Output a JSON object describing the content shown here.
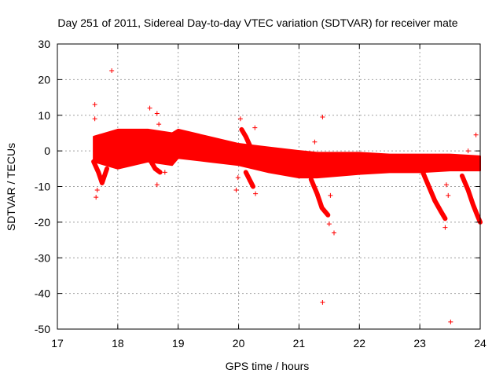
{
  "chart_data": {
    "type": "scatter",
    "title": "Day 251 of 2011, Sidereal Day-to-day VTEC variation (SDTVAR) for receiver mate",
    "xlabel": "GPS time / hours",
    "ylabel": "SDTVAR / TECUs",
    "xlim": [
      17,
      24
    ],
    "ylim": [
      -50,
      30
    ],
    "xticks": [
      "17",
      "18",
      "19",
      "20",
      "21",
      "22",
      "23",
      "24"
    ],
    "yticks": [
      "30",
      "20",
      "10",
      "0",
      "-10",
      "-20",
      "-30",
      "-40",
      "-50"
    ],
    "grid": true,
    "marker": "+",
    "series": [
      {
        "name": "SDTVAR",
        "color": "#ff0000",
        "band": {
          "x": [
            17.6,
            18.0,
            18.5,
            18.9,
            19.0,
            19.5,
            20.0,
            20.5,
            21.0,
            21.3,
            22.0,
            22.5,
            23.0,
            23.5,
            24.0
          ],
          "upper": [
            4,
            6,
            6,
            5,
            6,
            4,
            2,
            1,
            0,
            -0.5,
            -0.5,
            -1,
            -1,
            -1,
            -1.5
          ],
          "lower": [
            -3,
            -5,
            -3,
            -4,
            -2,
            -3,
            -4,
            -6,
            -7.5,
            -7.5,
            -6.5,
            -6,
            -6,
            -5.5,
            -5.5
          ]
        },
        "tracks": [
          {
            "x": [
              17.6,
              17.68,
              17.74,
              17.82
            ],
            "y": [
              -3,
              -6,
              -9,
              -5
            ]
          },
          {
            "x": [
              18.5,
              18.55,
              18.62,
              18.7
            ],
            "y": [
              -1,
              -3,
              -5,
              -6
            ]
          },
          {
            "x": [
              20.05,
              20.12,
              20.2,
              20.28
            ],
            "y": [
              6,
              4,
              1,
              -2
            ]
          },
          {
            "x": [
              20.12,
              20.18,
              20.24
            ],
            "y": [
              -6,
              -8,
              -10
            ]
          },
          {
            "x": [
              21.2,
              21.3,
              21.38,
              21.48
            ],
            "y": [
              -8,
              -12,
              -16,
              -18
            ]
          },
          {
            "x": [
              23.05,
              23.15,
              23.25,
              23.35,
              23.42
            ],
            "y": [
              -6,
              -10,
              -14,
              -17,
              -19
            ]
          },
          {
            "x": [
              23.7,
              23.8,
              23.88,
              23.95,
              24.0
            ],
            "y": [
              -7,
              -11,
              -15,
              -18,
              -20
            ]
          }
        ],
        "outliers": [
          {
            "x": 17.62,
            "y": 13
          },
          {
            "x": 17.62,
            "y": 9
          },
          {
            "x": 17.64,
            "y": -13
          },
          {
            "x": 17.66,
            "y": -11
          },
          {
            "x": 17.9,
            "y": 22.5
          },
          {
            "x": 18.53,
            "y": 12
          },
          {
            "x": 18.65,
            "y": 10.5
          },
          {
            "x": 18.65,
            "y": -9.5
          },
          {
            "x": 18.68,
            "y": 7.5
          },
          {
            "x": 18.78,
            "y": -6
          },
          {
            "x": 19.96,
            "y": -11
          },
          {
            "x": 19.99,
            "y": -7.5
          },
          {
            "x": 20.03,
            "y": 9
          },
          {
            "x": 20.19,
            "y": -8.5
          },
          {
            "x": 20.27,
            "y": 6.5
          },
          {
            "x": 20.28,
            "y": -12
          },
          {
            "x": 21.26,
            "y": 2.5
          },
          {
            "x": 21.39,
            "y": 9.5
          },
          {
            "x": 21.39,
            "y": -42.5
          },
          {
            "x": 21.52,
            "y": -12.5
          },
          {
            "x": 21.5,
            "y": -20.5
          },
          {
            "x": 21.58,
            "y": -23
          },
          {
            "x": 23.42,
            "y": -21.5
          },
          {
            "x": 23.47,
            "y": -12.5
          },
          {
            "x": 23.44,
            "y": -9.5
          },
          {
            "x": 23.51,
            "y": -48
          },
          {
            "x": 23.8,
            "y": 0
          },
          {
            "x": 23.93,
            "y": 4.5
          }
        ]
      }
    ]
  }
}
